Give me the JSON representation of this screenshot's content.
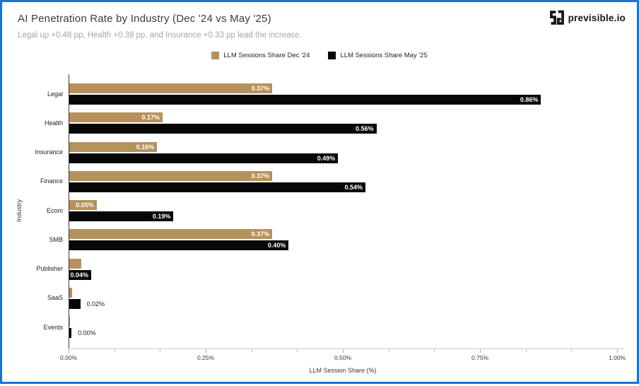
{
  "header": {
    "title": "AI Penetration Rate by Industry (Dec '24 vs May '25)",
    "subtitle": "Legal up +0.48 pp, Health +0.39 pp, and Insurance +0.33 pp lead the increase."
  },
  "logo": {
    "brand": "previsible.io"
  },
  "frame_color": "#1974d2",
  "chart_data": {
    "type": "bar",
    "orientation": "horizontal",
    "title": "AI Penetration Rate by Industry (Dec '24 vs May '25)",
    "subtitle": "Legal up +0.48 pp, Health +0.39 pp, and Insurance +0.33 pp lead the increase.",
    "xlabel": "LLM Session Share (%)",
    "ylabel": "Industry",
    "xlim": [
      0,
      1.0
    ],
    "xticks": [
      {
        "value": 0.0,
        "label": "0.00%"
      },
      {
        "value": 0.25,
        "label": "0.25%"
      },
      {
        "value": 0.5,
        "label": "0.50%"
      },
      {
        "value": 0.75,
        "label": "0.75%"
      },
      {
        "value": 1.0,
        "label": "1.00%"
      }
    ],
    "minor_ticks_per_interval": 2,
    "grid": false,
    "legend_position": "top-center",
    "categories": [
      "Legal",
      "Health",
      "Insurance",
      "Finance",
      "Ecom",
      "SMB",
      "Publisher",
      "SaaS",
      "Events"
    ],
    "series": [
      {
        "name": "LLM Sessions Share Dec '24",
        "key": "dec24",
        "color": "#b5925c",
        "values": [
          0.37,
          0.17,
          0.16,
          0.37,
          0.05,
          0.37,
          0.022,
          0.005,
          0.001
        ],
        "labels": [
          "0.37%",
          "0.17%",
          "0.16%",
          "0.37%",
          "0.05%",
          "0.37%",
          "",
          "",
          ""
        ],
        "label_pos": [
          "in",
          "in",
          "in",
          "in",
          "in",
          "in",
          "none",
          "none",
          "none"
        ]
      },
      {
        "name": "LLM Sessions Share May '25",
        "key": "may25",
        "color": "#070707",
        "values": [
          0.86,
          0.56,
          0.49,
          0.54,
          0.19,
          0.4,
          0.04,
          0.02,
          0.004
        ],
        "labels": [
          "0.86%",
          "0.56%",
          "0.49%",
          "0.54%",
          "0.19%",
          "0.40%",
          "0.04%",
          "0.02%",
          "0.00%"
        ],
        "label_pos": [
          "in",
          "in",
          "in",
          "in",
          "in",
          "in",
          "in",
          "out",
          "out"
        ]
      }
    ]
  }
}
